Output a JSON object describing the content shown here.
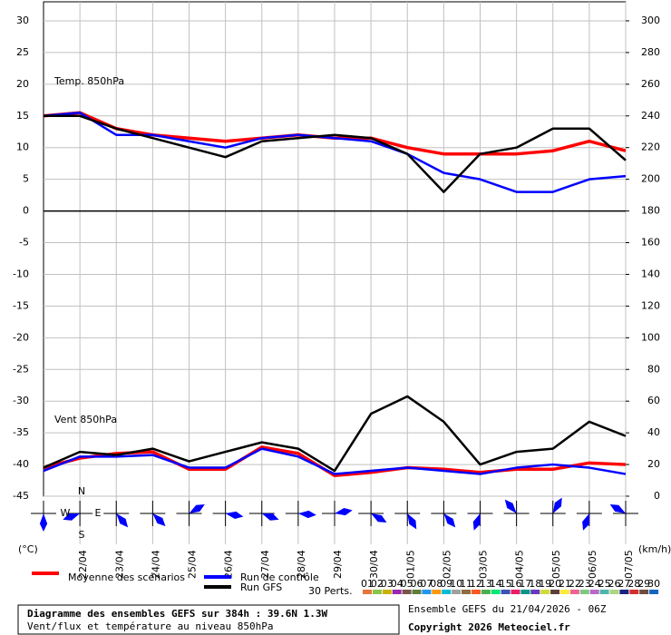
{
  "chart_data": {
    "type": "line",
    "x": [
      0,
      24,
      48,
      72,
      96,
      120,
      144,
      168,
      192,
      216,
      240,
      264,
      288,
      312,
      336,
      360,
      384
    ],
    "xlim": [
      0,
      384
    ],
    "xticks": [
      {
        "value": 24,
        "label": "22/04"
      },
      {
        "value": 48,
        "label": "23/04"
      },
      {
        "value": 72,
        "label": "24/04"
      },
      {
        "value": 96,
        "label": "25/04"
      },
      {
        "value": 120,
        "label": "26/04"
      },
      {
        "value": 144,
        "label": "27/04"
      },
      {
        "value": 168,
        "label": "28/04"
      },
      {
        "value": 192,
        "label": "29/04"
      },
      {
        "value": 216,
        "label": "30/04"
      },
      {
        "value": 240,
        "label": "01/05"
      },
      {
        "value": 264,
        "label": "02/05"
      },
      {
        "value": 288,
        "label": "03/05"
      },
      {
        "value": 312,
        "label": "04/05"
      },
      {
        "value": 336,
        "label": "05/05"
      },
      {
        "value": 360,
        "label": "06/05"
      },
      {
        "value": 384,
        "label": "07/05"
      }
    ],
    "ylim": [
      -45,
      33
    ],
    "yticks": [
      30,
      25,
      20,
      15,
      10,
      5,
      0,
      -5,
      -10,
      -15,
      -20,
      -25,
      -30,
      -35,
      -40,
      -45
    ],
    "y2lim": [
      0,
      312
    ],
    "y2ticks": [
      300,
      280,
      260,
      240,
      220,
      200,
      180,
      160,
      140,
      120,
      100,
      80,
      60,
      40,
      20,
      0
    ],
    "y_unit": "(°C)",
    "y2_unit": "(km/h)",
    "grid": true,
    "temp_label": "Temp. 850hPa",
    "wind_label": "Vent 850hPa",
    "series": [
      {
        "axis": "y",
        "color": "#ff0000",
        "width": 3.5,
        "values": [
          15,
          15.5,
          13,
          12,
          11.5,
          11,
          11.5,
          12,
          11.5,
          11.5,
          10,
          9,
          9,
          9,
          9.5,
          11,
          9.5
        ]
      },
      {
        "axis": "y",
        "color": "#0000ff",
        "width": 2.5,
        "values": [
          15,
          15.5,
          12,
          12,
          11,
          10,
          11.5,
          12,
          11.5,
          11,
          9,
          6,
          5,
          3,
          3,
          5,
          5.5
        ]
      },
      {
        "axis": "y",
        "color": "#000000",
        "width": 2.5,
        "values": [
          15,
          15,
          13,
          11.5,
          10,
          8.5,
          11,
          11.5,
          12,
          11.5,
          9,
          3,
          9,
          10,
          13,
          13,
          8
        ]
      },
      {
        "axis": "y2",
        "color": "#ff0000",
        "width": 3.5,
        "values": [
          18,
          24,
          27,
          28,
          17,
          17,
          31,
          27,
          13,
          15,
          18,
          17,
          15,
          17,
          17,
          21,
          20
        ]
      },
      {
        "axis": "y2",
        "color": "#0000ff",
        "width": 2.5,
        "values": [
          16,
          25,
          25,
          26,
          18,
          18,
          30,
          25,
          14,
          16,
          18,
          16,
          14,
          18,
          20,
          18,
          14
        ]
      },
      {
        "axis": "y2",
        "color": "#000000",
        "width": 2.5,
        "values": [
          18,
          28,
          26,
          30,
          22,
          28,
          34,
          30,
          16,
          52,
          63,
          47,
          20,
          28,
          30,
          47,
          38
        ]
      }
    ],
    "wind_directions": [
      180,
      250,
      140,
      135,
      60,
      100,
      110,
      95,
      80,
      120,
      150,
      140,
      200,
      320,
      30,
      200,
      300
    ],
    "compass": [
      "N",
      "S",
      "E",
      "W"
    ],
    "legend": [
      {
        "name": "Moyenne des scénarios",
        "color": "#ff0000"
      },
      {
        "name": "Run de contrôle",
        "color": "#0000ff"
      },
      {
        "name": "Run GFS",
        "color": "#000000"
      }
    ],
    "perturbations_label": "30 Perts.",
    "perturbations": [
      {
        "name": "01",
        "color": "#e8743b"
      },
      {
        "name": "02",
        "color": "#8bc34a"
      },
      {
        "name": "03",
        "color": "#c8b400"
      },
      {
        "name": "04",
        "color": "#9c27b0"
      },
      {
        "name": "05",
        "color": "#795548"
      },
      {
        "name": "06",
        "color": "#607d3b"
      },
      {
        "name": "07",
        "color": "#2196f3"
      },
      {
        "name": "08",
        "color": "#ff9800"
      },
      {
        "name": "09",
        "color": "#00bcd4"
      },
      {
        "name": "10",
        "color": "#a0a0a0"
      },
      {
        "name": "11",
        "color": "#8d6e3f"
      },
      {
        "name": "12",
        "color": "#ff5722"
      },
      {
        "name": "13",
        "color": "#4caf50"
      },
      {
        "name": "14",
        "color": "#00e676"
      },
      {
        "name": "15",
        "color": "#3f51b5"
      },
      {
        "name": "16",
        "color": "#e91e63"
      },
      {
        "name": "17",
        "color": "#009688"
      },
      {
        "name": "18",
        "color": "#673ab7"
      },
      {
        "name": "19",
        "color": "#cddc39"
      },
      {
        "name": "20",
        "color": "#5d4037"
      },
      {
        "name": "21",
        "color": "#ffeb3b"
      },
      {
        "name": "22",
        "color": "#f06292"
      },
      {
        "name": "23",
        "color": "#81c784"
      },
      {
        "name": "24",
        "color": "#ba68c8"
      },
      {
        "name": "25",
        "color": "#4db6ac"
      },
      {
        "name": "26",
        "color": "#aed581"
      },
      {
        "name": "27",
        "color": "#1a237e"
      },
      {
        "name": "28",
        "color": "#d32f2f"
      },
      {
        "name": "29",
        "color": "#6d4c41"
      },
      {
        "name": "30",
        "color": "#1565c0"
      }
    ],
    "info_title": "Diagramme des ensembles GEFS sur 384h : 39.6N 1.3W",
    "info_subtitle": "Vent/flux et température au niveau 850hPa",
    "run_info": "Ensemble GEFS du 21/04/2026 - 06Z",
    "copyright": "Copyright 2026 Meteociel.fr"
  }
}
